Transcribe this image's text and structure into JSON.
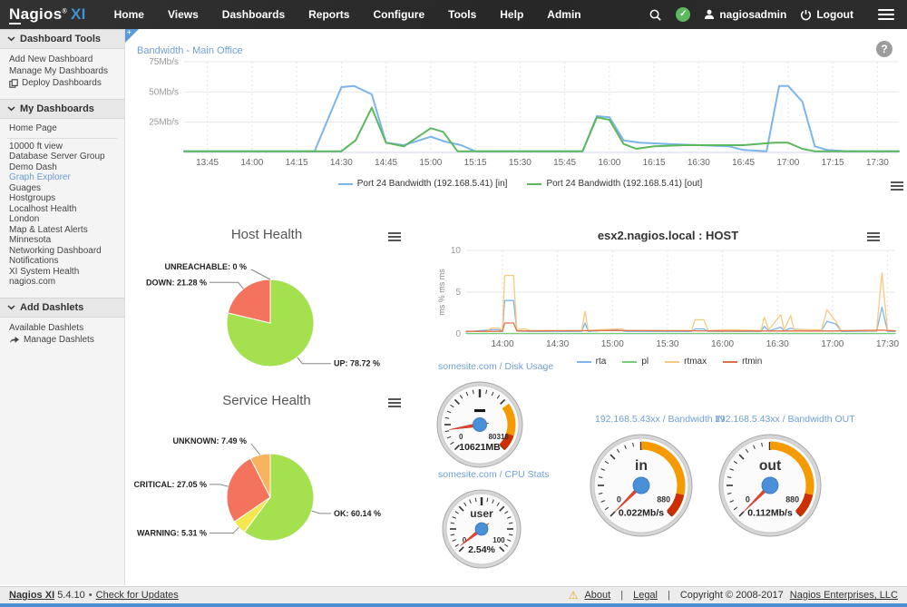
{
  "navbar": {
    "logo": {
      "name": "Nagios",
      "registered": "®",
      "edition": "XI"
    },
    "menu": [
      "Home",
      "Views",
      "Dashboards",
      "Reports",
      "Configure",
      "Tools",
      "Help",
      "Admin"
    ],
    "user": "nagiosadmin",
    "logout": "Logout"
  },
  "sidebar": {
    "sections": [
      {
        "title": "Dashboard Tools",
        "items": [
          {
            "label": "Add New Dashboard"
          },
          {
            "label": "Manage My Dashboards"
          },
          {
            "label": "Deploy Dashboards",
            "icon": "deploy-icon"
          }
        ]
      },
      {
        "title": "My Dashboards",
        "items": [
          {
            "label": "Home Page",
            "divider_after": true
          },
          {
            "label": "10000 ft view"
          },
          {
            "label": "Database Server Group"
          },
          {
            "label": "Demo Dash"
          },
          {
            "label": "Graph Explorer",
            "active": true
          },
          {
            "label": "Guages"
          },
          {
            "label": "Hostgroups"
          },
          {
            "label": "Localhost Health"
          },
          {
            "label": "London"
          },
          {
            "label": "Map & Latest Alerts"
          },
          {
            "label": "Minnesota"
          },
          {
            "label": "Networking Dashboard"
          },
          {
            "label": "Notifications"
          },
          {
            "label": "XI System Health"
          },
          {
            "label": "nagios.com"
          }
        ]
      },
      {
        "title": "Add Dashlets",
        "items": [
          {
            "label": "Available Dashlets"
          },
          {
            "label": "Manage Dashlets",
            "icon": "share-icon"
          }
        ]
      }
    ]
  },
  "main": {
    "help": "?",
    "fold_plus": "+"
  },
  "footer": {
    "product": "Nagios XI",
    "version": "5.4.10",
    "bullet": "•",
    "check_updates": "Check for Updates",
    "about": "About",
    "legal": "Legal",
    "copyright": "Copyright © 2008-2017",
    "company": "Nagios Enterprises, LLC"
  },
  "chart_data": [
    {
      "id": "bandwidth",
      "type": "line",
      "title": "Bandwidth - Main Office",
      "ylim": [
        0,
        75
      ],
      "xlim": [
        13.62,
        17.62
      ],
      "grid": true,
      "legend_position": "bottom",
      "y_ticks": [
        {
          "v": 25,
          "label": "25Mb/s"
        },
        {
          "v": 50,
          "label": "50Mb/s"
        },
        {
          "v": 75,
          "label": "75Mb/s"
        }
      ],
      "x_ticks": [
        {
          "v": 13.75,
          "label": "13:45"
        },
        {
          "v": 14.0,
          "label": "14:00"
        },
        {
          "v": 14.25,
          "label": "14:15"
        },
        {
          "v": 14.5,
          "label": "14:30"
        },
        {
          "v": 14.75,
          "label": "14:45"
        },
        {
          "v": 15.0,
          "label": "15:00"
        },
        {
          "v": 15.25,
          "label": "15:15"
        },
        {
          "v": 15.5,
          "label": "15:30"
        },
        {
          "v": 15.75,
          "label": "15:45"
        },
        {
          "v": 16.0,
          "label": "16:00"
        },
        {
          "v": 16.25,
          "label": "16:15"
        },
        {
          "v": 16.5,
          "label": "16:30"
        },
        {
          "v": 16.75,
          "label": "16:45"
        },
        {
          "v": 17.0,
          "label": "17:00"
        },
        {
          "v": 17.25,
          "label": "17:15"
        },
        {
          "v": 17.5,
          "label": "17:30"
        }
      ],
      "series": [
        {
          "name": "Port 24 Bandwidth (192.168.5.41) [in]",
          "color": "#7cb5ec",
          "points": [
            [
              13.62,
              1
            ],
            [
              14.35,
              1
            ],
            [
              14.5,
              54
            ],
            [
              14.57,
              55
            ],
            [
              14.67,
              48
            ],
            [
              14.75,
              8
            ],
            [
              14.85,
              6
            ],
            [
              15.0,
              13
            ],
            [
              15.08,
              9
            ],
            [
              15.17,
              6
            ],
            [
              15.25,
              1
            ],
            [
              15.85,
              1
            ],
            [
              15.93,
              30
            ],
            [
              16.0,
              29
            ],
            [
              16.08,
              10
            ],
            [
              16.17,
              8
            ],
            [
              16.33,
              7
            ],
            [
              16.5,
              6
            ],
            [
              16.67,
              5
            ],
            [
              16.75,
              2
            ],
            [
              16.88,
              1
            ],
            [
              16.95,
              55
            ],
            [
              17.0,
              55
            ],
            [
              17.08,
              42
            ],
            [
              17.15,
              5
            ],
            [
              17.22,
              2
            ],
            [
              17.33,
              1
            ],
            [
              17.62,
              1
            ]
          ]
        },
        {
          "name": "Port 24 Bandwidth (192.168.5.41) [out]",
          "color": "#5cb85c",
          "points": [
            [
              13.62,
              1
            ],
            [
              14.5,
              1
            ],
            [
              14.58,
              10
            ],
            [
              14.67,
              37
            ],
            [
              14.75,
              8
            ],
            [
              14.85,
              5
            ],
            [
              15.0,
              20
            ],
            [
              15.07,
              17
            ],
            [
              15.15,
              1
            ],
            [
              15.85,
              1
            ],
            [
              15.93,
              29
            ],
            [
              16.0,
              27
            ],
            [
              16.08,
              7
            ],
            [
              16.15,
              3
            ],
            [
              16.25,
              5
            ],
            [
              16.42,
              6
            ],
            [
              16.58,
              6
            ],
            [
              16.75,
              6
            ],
            [
              16.92,
              8
            ],
            [
              17.0,
              8
            ],
            [
              17.08,
              3
            ],
            [
              17.15,
              1
            ],
            [
              17.62,
              1
            ]
          ]
        }
      ]
    },
    {
      "id": "host_health",
      "type": "pie",
      "title": "Host Health",
      "slices": [
        {
          "label": "UP",
          "pct": 78.72,
          "color": "#a5e14e",
          "label_text": "UP: 78.72 %"
        },
        {
          "label": "DOWN",
          "pct": 21.28,
          "color": "#f4735c",
          "label_text": "DOWN: 21.28 %"
        },
        {
          "label": "UNREACHABLE",
          "pct": 0,
          "color": "#cccccc",
          "label_text": "UNREACHABLE: 0 %"
        }
      ]
    },
    {
      "id": "service_health",
      "type": "pie",
      "title": "Service Health",
      "slices": [
        {
          "label": "OK",
          "pct": 60.14,
          "color": "#a5e14e",
          "label_text": "OK: 60.14 %"
        },
        {
          "label": "WARNING",
          "pct": 5.31,
          "color": "#f5e84f",
          "label_text": "WARNING: 5.31 %"
        },
        {
          "label": "CRITICAL",
          "pct": 27.05,
          "color": "#f4735c",
          "label_text": "CRITICAL: 27.05 %"
        },
        {
          "label": "UNKNOWN",
          "pct": 7.49,
          "color": "#f8b35e",
          "label_text": "UNKNOWN: 7.49 %"
        }
      ]
    },
    {
      "id": "esx2",
      "type": "line",
      "title": "esx2.nagios.local : HOST",
      "ylabel": "ms % ms ms",
      "ylim": [
        0,
        10
      ],
      "xlim": [
        13.67,
        17.57
      ],
      "grid": true,
      "legend_position": "bottom",
      "y_ticks": [
        {
          "v": 0,
          "label": "0"
        },
        {
          "v": 5,
          "label": "5"
        },
        {
          "v": 10,
          "label": "10"
        }
      ],
      "x_ticks": [
        {
          "v": 14.0,
          "label": "14:00"
        },
        {
          "v": 14.5,
          "label": "14:30"
        },
        {
          "v": 15.0,
          "label": "15:00"
        },
        {
          "v": 15.5,
          "label": "15:30"
        },
        {
          "v": 16.0,
          "label": "16:00"
        },
        {
          "v": 16.5,
          "label": "16:30"
        },
        {
          "v": 17.0,
          "label": "17:00"
        },
        {
          "v": 17.5,
          "label": "17:30"
        }
      ],
      "series": [
        {
          "name": "rta",
          "color": "#7cb5ec",
          "points": [
            [
              13.67,
              0.25
            ],
            [
              13.9,
              0.5
            ],
            [
              13.97,
              0.5
            ],
            [
              14.0,
              0.3
            ],
            [
              14.02,
              4
            ],
            [
              14.1,
              4
            ],
            [
              14.13,
              0.35
            ],
            [
              14.25,
              0.3
            ],
            [
              14.72,
              0.3
            ],
            [
              14.75,
              1.3
            ],
            [
              14.78,
              0.3
            ],
            [
              15.03,
              0.5
            ],
            [
              15.12,
              0.3
            ],
            [
              15.72,
              0.3
            ],
            [
              15.75,
              0.6
            ],
            [
              15.83,
              0.6
            ],
            [
              15.87,
              0.3
            ],
            [
              16.35,
              0.3
            ],
            [
              16.38,
              0.9
            ],
            [
              16.42,
              0.35
            ],
            [
              16.53,
              0.8
            ],
            [
              16.56,
              0.35
            ],
            [
              16.62,
              0.7
            ],
            [
              16.65,
              0.55
            ],
            [
              16.9,
              0.4
            ],
            [
              16.95,
              1.5
            ],
            [
              17.03,
              1.2
            ],
            [
              17.08,
              0.3
            ],
            [
              17.4,
              0.3
            ],
            [
              17.45,
              3.2
            ],
            [
              17.5,
              0.3
            ],
            [
              17.57,
              0.3
            ]
          ]
        },
        {
          "name": "pl",
          "color": "#77d077",
          "points": [
            [
              13.67,
              0.05
            ],
            [
              17.57,
              0.05
            ]
          ]
        },
        {
          "name": "rtmax",
          "color": "#f9c97f",
          "points": [
            [
              13.67,
              0.3
            ],
            [
              13.85,
              0.3
            ],
            [
              13.9,
              0.7
            ],
            [
              13.97,
              0.7
            ],
            [
              14.0,
              0.4
            ],
            [
              14.02,
              7
            ],
            [
              14.1,
              7
            ],
            [
              14.13,
              0.5
            ],
            [
              14.2,
              0.6
            ],
            [
              14.25,
              0.4
            ],
            [
              14.72,
              0.4
            ],
            [
              14.75,
              2.7
            ],
            [
              14.78,
              0.4
            ],
            [
              15.03,
              0.6
            ],
            [
              15.08,
              0.6
            ],
            [
              15.12,
              0.4
            ],
            [
              15.72,
              0.4
            ],
            [
              15.75,
              1.7
            ],
            [
              15.83,
              1.7
            ],
            [
              15.87,
              0.4
            ],
            [
              16.05,
              0.5
            ],
            [
              16.35,
              0.4
            ],
            [
              16.38,
              2.0
            ],
            [
              16.42,
              0.5
            ],
            [
              16.53,
              2.3
            ],
            [
              16.56,
              0.5
            ],
            [
              16.62,
              2.2
            ],
            [
              16.65,
              0.5
            ],
            [
              16.9,
              0.5
            ],
            [
              16.95,
              2.9
            ],
            [
              17.03,
              1.5
            ],
            [
              17.08,
              0.4
            ],
            [
              17.4,
              0.35
            ],
            [
              17.45,
              7.3
            ],
            [
              17.5,
              0.4
            ],
            [
              17.57,
              0.4
            ]
          ]
        },
        {
          "name": "rtmin",
          "color": "#e0714a",
          "points": [
            [
              13.67,
              0.3
            ],
            [
              14.0,
              0.3
            ],
            [
              14.02,
              1.3
            ],
            [
              14.1,
              1.3
            ],
            [
              14.13,
              0.35
            ],
            [
              15.0,
              0.4
            ],
            [
              16.0,
              0.35
            ],
            [
              17.0,
              0.35
            ],
            [
              17.45,
              0.45
            ],
            [
              17.57,
              0.35
            ]
          ]
        }
      ]
    },
    {
      "id": "disk_usage",
      "type": "gauge",
      "title": "somesite.com / Disk Usage",
      "label": "",
      "dash": true,
      "min_label": "0",
      "max_label": "80318",
      "value": 10621,
      "max": 80318,
      "value_label": "10621MB",
      "bands": [
        {
          "from": 0.7,
          "to": 0.9,
          "color": "#f59a00"
        },
        {
          "from": 0.9,
          "to": 1,
          "color": "#cc3000"
        }
      ]
    },
    {
      "id": "cpu_stats",
      "type": "gauge",
      "title": "somesite.com / CPU Stats",
      "label": "user",
      "min_label": "0",
      "max_label": "100",
      "value": 2.54,
      "max": 100,
      "value_label": "2.54%",
      "bands": []
    },
    {
      "id": "bandwidth_in",
      "type": "gauge",
      "title": "192.168.5.43xx / Bandwidth IN",
      "label": "in",
      "min_label": "0",
      "max_label": "880",
      "value": 0.022,
      "max": 880,
      "value_label": "0.022Mb/s",
      "bands": [
        {
          "from": 0.5,
          "to": 0.88,
          "color": "#f59a00"
        },
        {
          "from": 0.88,
          "to": 1,
          "color": "#cc3000"
        }
      ]
    },
    {
      "id": "bandwidth_out",
      "type": "gauge",
      "title": "192.168.5.43xx / Bandwidth OUT",
      "label": "out",
      "min_label": "0",
      "max_label": "880",
      "value": 0.112,
      "max": 880,
      "value_label": "0.112Mb/s",
      "bands": [
        {
          "from": 0.5,
          "to": 0.88,
          "color": "#f59a00"
        },
        {
          "from": 0.88,
          "to": 1,
          "color": "#cc3000"
        }
      ]
    }
  ]
}
